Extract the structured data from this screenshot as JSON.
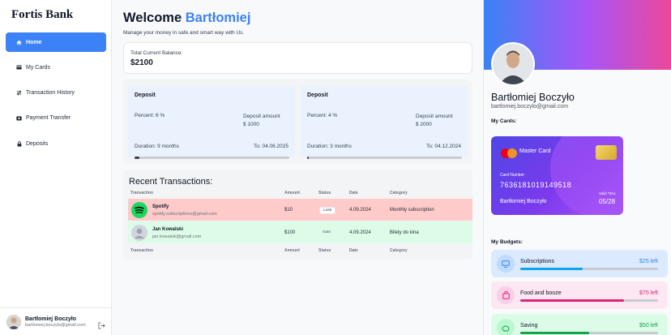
{
  "sidebar": {
    "brand": "Fortis Bank",
    "items": [
      {
        "label": "Home",
        "icon": "home-icon",
        "active": true
      },
      {
        "label": "My Cards",
        "icon": "card-icon"
      },
      {
        "label": "Transaction History",
        "icon": "exchange-icon"
      },
      {
        "label": "Payment Transfer",
        "icon": "transfer-icon"
      },
      {
        "label": "Deposits",
        "icon": "lock-icon"
      }
    ],
    "user": {
      "name": "Bartłomiej Boczyło",
      "email": "bartlomiej.boczylo@gmail.com"
    }
  },
  "main": {
    "welcome_prefix": "Welcome",
    "welcome_name": "Bartłomiej",
    "subtitle": "Manage your money in safe and smart way with Us.",
    "balance": {
      "label": "Total Current Balance:",
      "value": "$2100"
    },
    "deposits": [
      {
        "title": "Deposit",
        "percent": "Percent: 6 %",
        "amount_label": "Deposit amount",
        "amount": "$ 1000",
        "duration": "Duration: 9 months",
        "to": "To: 04.06.2025",
        "progress": 0.03
      },
      {
        "title": "Deposit",
        "percent": "Percent: 4 %",
        "amount_label": "Deposit amount",
        "amount": "$ 2000",
        "duration": "Duration: 3 months",
        "to": "To: 04.12.2024",
        "progress": 0.01
      }
    ],
    "recent": {
      "title": "Recent Transactions:",
      "columns": [
        "Transaction",
        "Amount",
        "Status",
        "Date",
        "Category"
      ],
      "rows": [
        {
          "name": "Spotify",
          "email": "spotify.subscriptions@gmail.com",
          "amount": "$10",
          "status": "Loss",
          "date": "4.09.2024",
          "category": "Monthly subscription"
        },
        {
          "name": "Jan Kowalski",
          "email": "jan.kowalski@gmail.com",
          "amount": "$100",
          "status": "Gain",
          "date": "4.09.2024",
          "category": "Bilety do kina"
        }
      ]
    }
  },
  "profile": {
    "name": "Bartłomiej Boczyło",
    "email": "bartlomiej.boczylo@gmail.com",
    "cards_title": "My Cards:",
    "card": {
      "brand": "Master Card",
      "number_label": "Card Number",
      "number": "7636181019149518",
      "holder": "Bartłomiej Boczyło",
      "valid_label": "Valid Thru:",
      "expiry": "05/28"
    },
    "budgets_title": "My Budgets:",
    "budgets": [
      {
        "name": "Subscriptions",
        "left": "$25 left",
        "progress": 0.45,
        "bg": "#dbeafe",
        "color": "#0ea5e9",
        "icon_bg": "#bfdbfe",
        "left_color": "#3b82f6"
      },
      {
        "name": "Food and booze",
        "left": "$75 left",
        "progress": 0.75,
        "bg": "#fce7f3",
        "color": "#db2777",
        "icon_bg": "#fbcfe8",
        "left_color": "#db2777"
      },
      {
        "name": "Saving",
        "left": "$50 left",
        "progress": 0.5,
        "bg": "#dcfce7",
        "color": "#16a34a",
        "icon_bg": "#bbf7d0",
        "left_color": "#16a34a"
      }
    ]
  }
}
